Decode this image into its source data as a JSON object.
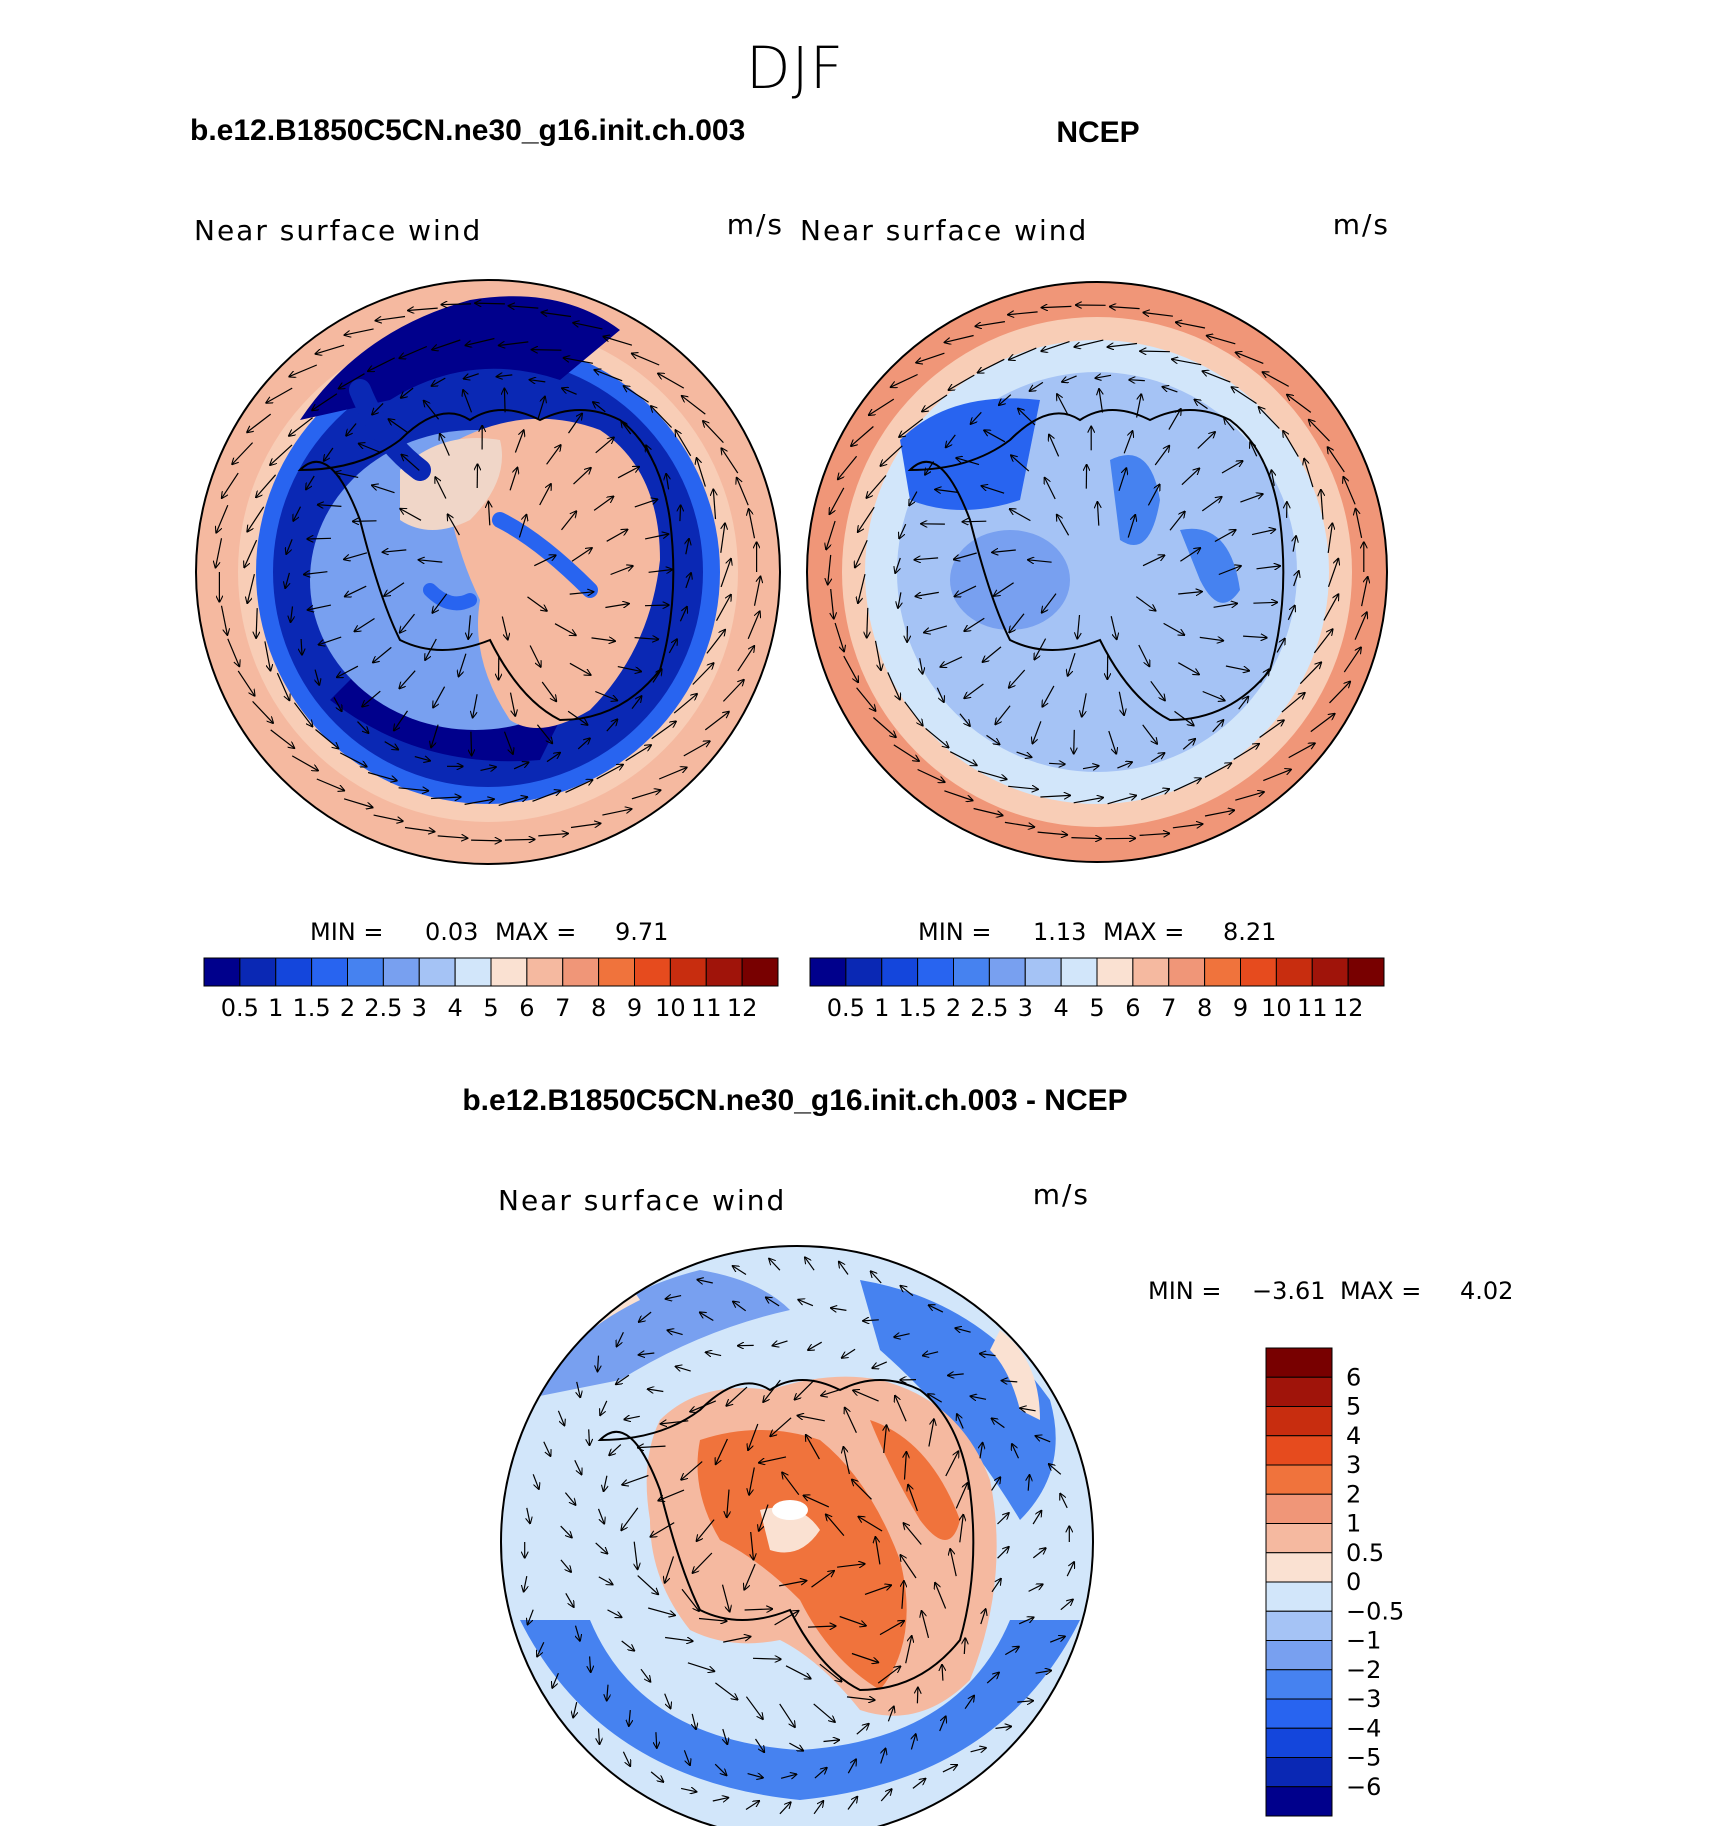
{
  "figure_title": "DJF",
  "units": "m/s",
  "chart_data": [
    {
      "type": "heatmap",
      "projection": "south-polar-stereographic",
      "variable": "Near surface wind",
      "title": "b.e12.B1850C5CN.ne30_g16.init.ch.003",
      "subtitle_left": "Near surface wind",
      "subtitle_right": "m/s",
      "min_label": "MIN =",
      "min_value": "0.03",
      "max_label": "MAX =",
      "max_value": "9.71",
      "colorbar": {
        "orientation": "horizontal",
        "levels": [
          "0.5",
          "1",
          "1.5",
          "2",
          "2.5",
          "3",
          "4",
          "5",
          "6",
          "7",
          "8",
          "9",
          "10",
          "11",
          "12"
        ],
        "colors": [
          "#00008c",
          "#0a28b4",
          "#1446dc",
          "#2864f0",
          "#4682f0",
          "#78a0f0",
          "#a5c3f5",
          "#d2e6fa",
          "#fae1d2",
          "#f5b9a0",
          "#f09678",
          "#f0733c",
          "#e64b1e",
          "#c82d0f",
          "#a0140a",
          "#780000"
        ]
      }
    },
    {
      "type": "heatmap",
      "projection": "south-polar-stereographic",
      "variable": "Near surface wind",
      "title": "NCEP",
      "subtitle_left": "Near surface wind",
      "subtitle_right": "m/s",
      "min_label": "MIN =",
      "min_value": "1.13",
      "max_label": "MAX =",
      "max_value": "8.21",
      "colorbar": {
        "orientation": "horizontal",
        "levels": [
          "0.5",
          "1",
          "1.5",
          "2",
          "2.5",
          "3",
          "4",
          "5",
          "6",
          "7",
          "8",
          "9",
          "10",
          "11",
          "12"
        ],
        "colors": [
          "#00008c",
          "#0a28b4",
          "#1446dc",
          "#2864f0",
          "#4682f0",
          "#78a0f0",
          "#a5c3f5",
          "#d2e6fa",
          "#fae1d2",
          "#f5b9a0",
          "#f09678",
          "#f0733c",
          "#e64b1e",
          "#c82d0f",
          "#a0140a",
          "#780000"
        ]
      }
    },
    {
      "type": "heatmap",
      "projection": "south-polar-stereographic",
      "variable": "Near surface wind difference",
      "title": "b.e12.B1850C5CN.ne30_g16.init.ch.003 - NCEP",
      "subtitle_left": "Near surface wind",
      "subtitle_right": "m/s",
      "min_label": "MIN =",
      "min_value": "−3.61",
      "max_label": "MAX =",
      "max_value": "4.02",
      "colorbar": {
        "orientation": "vertical",
        "levels": [
          "6",
          "5",
          "4",
          "3",
          "2",
          "1",
          "0.5",
          "0",
          "−0.5",
          "−1",
          "−2",
          "−3",
          "−4",
          "−5",
          "−6"
        ],
        "colors": [
          "#780000",
          "#a0140a",
          "#c82d0f",
          "#e64b1e",
          "#f0733c",
          "#f09678",
          "#f5b9a0",
          "#fae1d2",
          "#d2e6fa",
          "#a5c3f5",
          "#78a0f0",
          "#4682f0",
          "#2864f0",
          "#1446dc",
          "#0a28b4",
          "#00008c"
        ]
      }
    }
  ]
}
